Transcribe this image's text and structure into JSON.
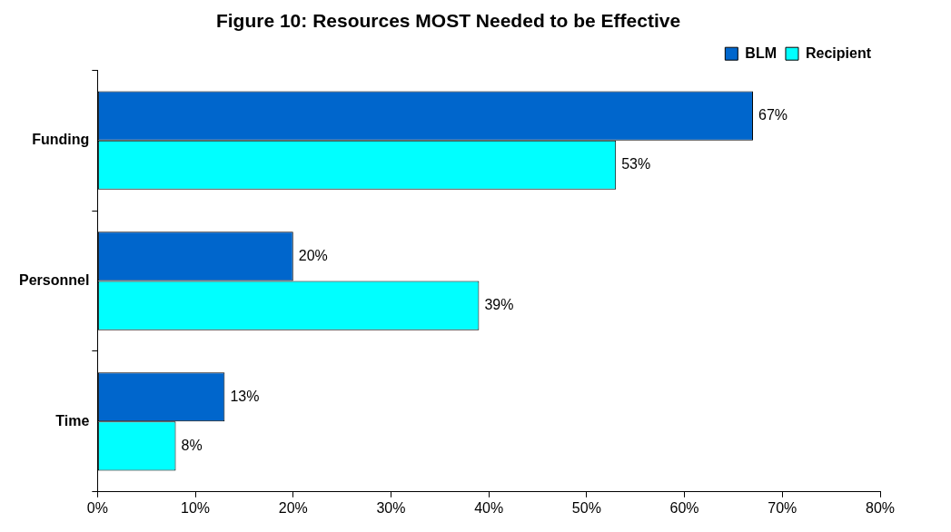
{
  "chart_data": {
    "type": "bar",
    "title": "Figure 10: Resources MOST Needed to be Effective",
    "orientation": "horizontal",
    "categories": [
      "Funding",
      "Personnel",
      "Time"
    ],
    "series": [
      {
        "name": "BLM",
        "color": "#0066cc",
        "values": [
          67,
          20,
          13
        ],
        "value_labels": [
          "67%",
          "20%",
          "13%"
        ]
      },
      {
        "name": "Recipient",
        "color": "#00ffff",
        "values": [
          53,
          39,
          8
        ],
        "value_labels": [
          "53%",
          "39%",
          "8%"
        ]
      }
    ],
    "xlim": [
      0,
      80
    ],
    "xticks": [
      {
        "value": 0,
        "label": "0%"
      },
      {
        "value": 10,
        "label": "10%"
      },
      {
        "value": 20,
        "label": "20%"
      },
      {
        "value": 30,
        "label": "30%"
      },
      {
        "value": 40,
        "label": "40%"
      },
      {
        "value": 50,
        "label": "50%"
      },
      {
        "value": 60,
        "label": "60%"
      },
      {
        "value": 70,
        "label": "70%"
      },
      {
        "value": 80,
        "label": "80%"
      }
    ],
    "legend": "top right",
    "grid": false
  }
}
